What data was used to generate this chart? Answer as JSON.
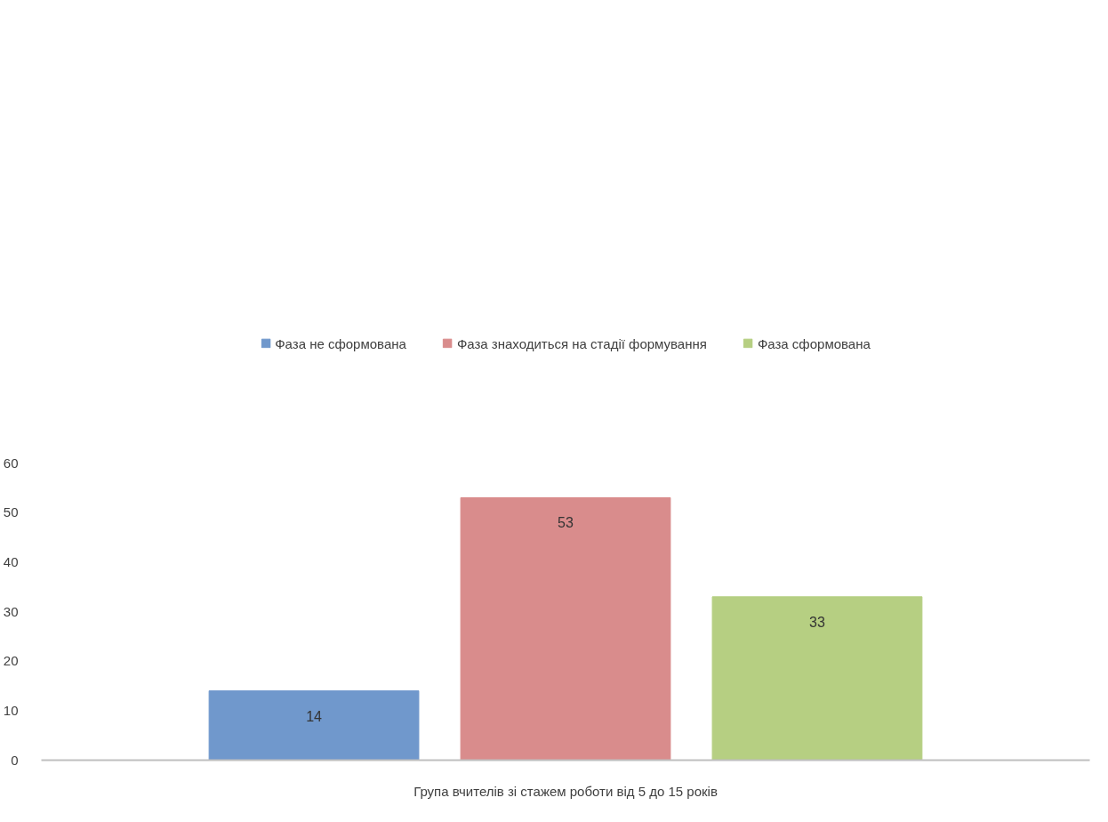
{
  "chart_data": {
    "type": "bar",
    "categories": [
      "Група вчителів зі стажем роботи від 5 до 15 років"
    ],
    "series": [
      {
        "name": "Фаза не сформована",
        "color": "#7098cc",
        "values": [
          14
        ]
      },
      {
        "name": "Фаза знаходиться на стадії формування",
        "color": "#d98c8c",
        "values": [
          53
        ]
      },
      {
        "name": "Фаза сформована",
        "color": "#b6cf82",
        "values": [
          33
        ]
      }
    ],
    "ylim": [
      0,
      60
    ],
    "yticks": [
      0,
      10,
      20,
      30,
      40,
      50,
      60
    ],
    "grid": false,
    "legend": "top",
    "data_labels": true
  }
}
